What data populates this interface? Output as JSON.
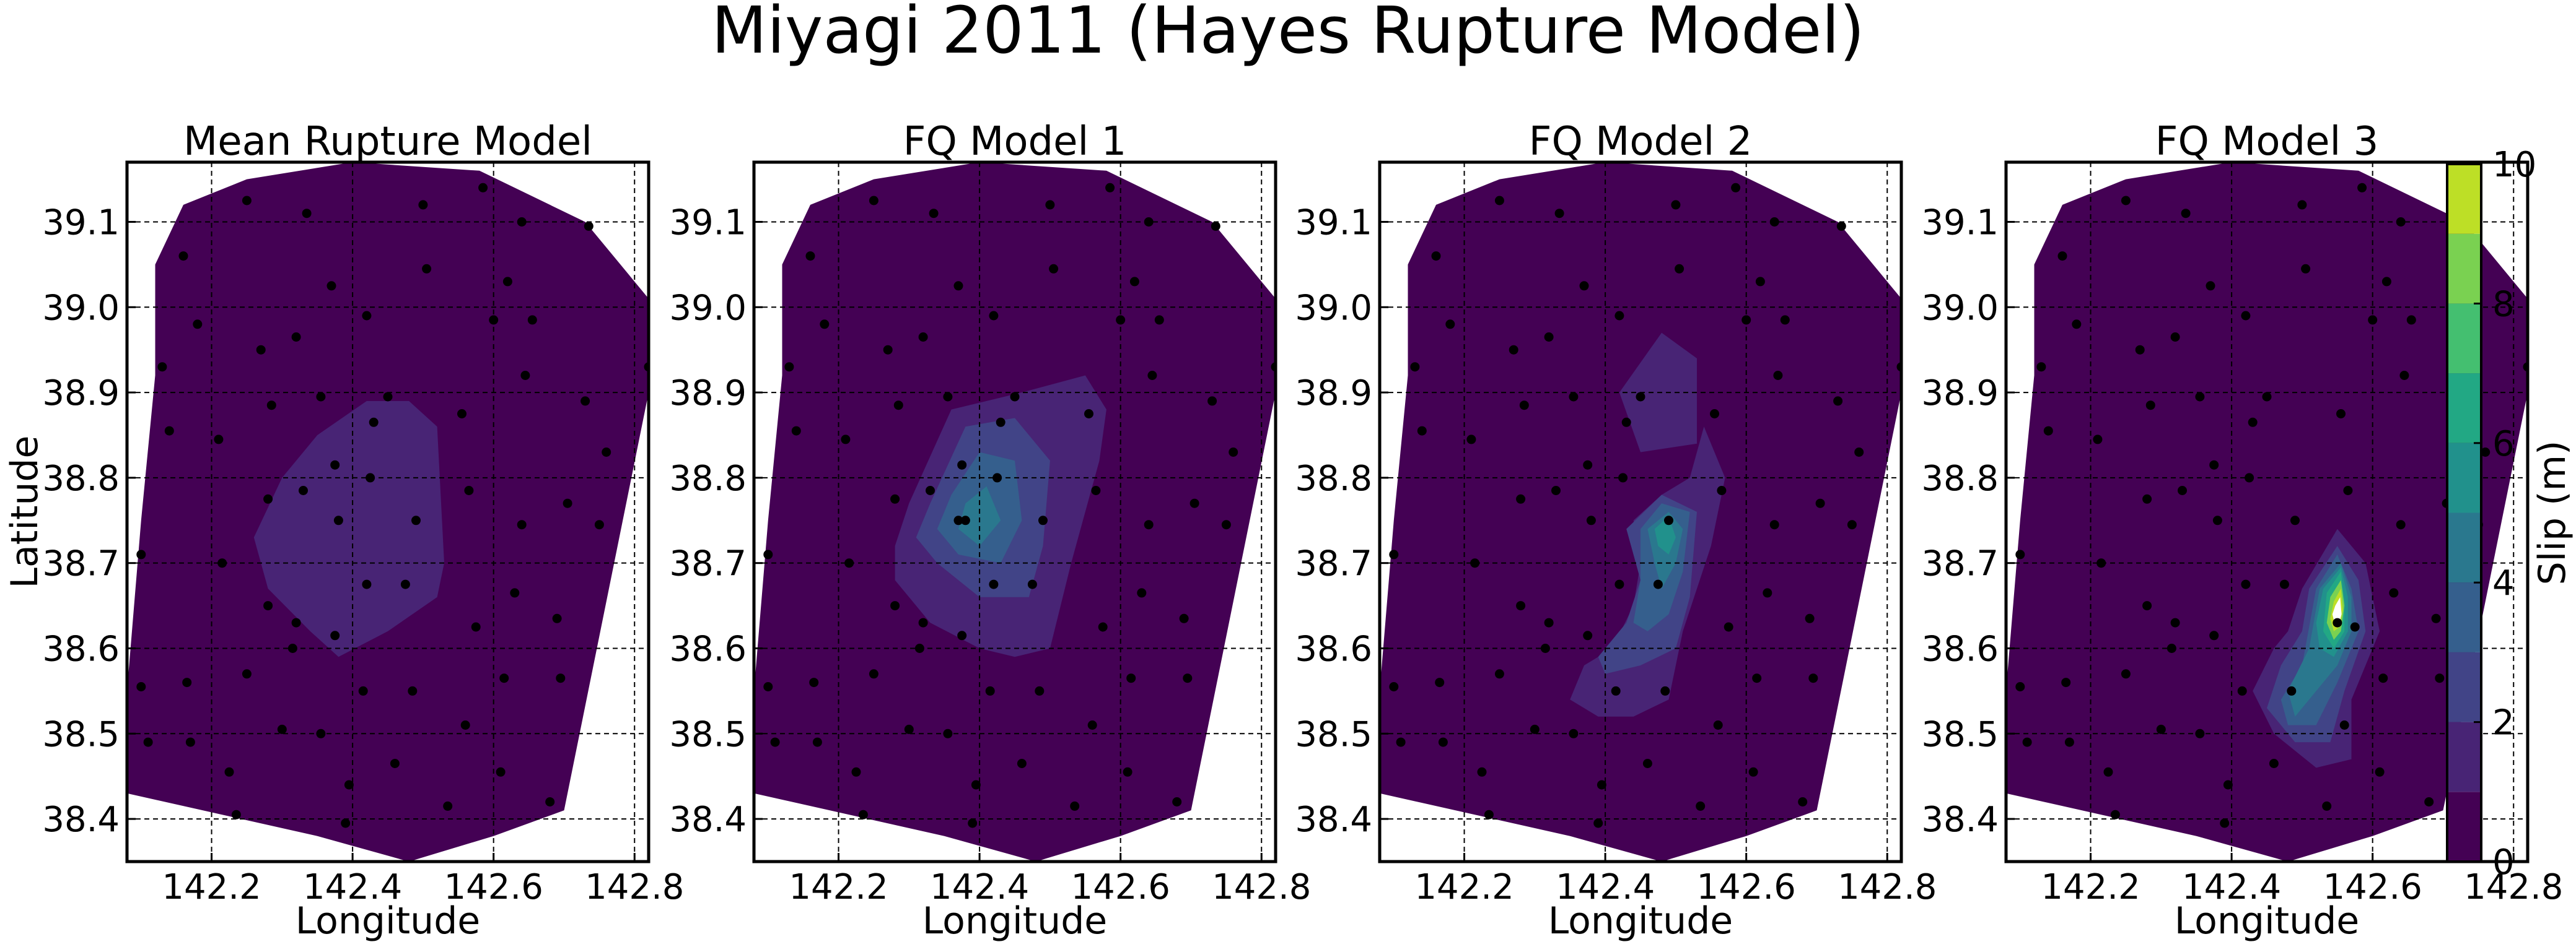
{
  "figure": {
    "title": "Miyagi 2011 (Hayes Rupture Model)"
  },
  "colors": {
    "levels": [
      "#440154",
      "#482475",
      "#414487",
      "#355f8d",
      "#2a788e",
      "#21918c",
      "#22a884",
      "#44bf70",
      "#7ad151",
      "#bddf26",
      "#fde725"
    ],
    "points": "#000000",
    "grid": "#000000"
  },
  "chart_data": [
    {
      "type": "contour",
      "title": "Mean Rupture Model",
      "xlabel": "Longitude",
      "ylabel": "Latitude",
      "xlim": [
        142.08,
        142.82
      ],
      "ylim": [
        38.35,
        39.17
      ],
      "xticks": [
        "142.2",
        "142.4",
        "142.6",
        "142.8"
      ],
      "yticks": [
        "38.4",
        "38.5",
        "38.6",
        "38.7",
        "38.8",
        "38.9",
        "39.0",
        "39.1"
      ],
      "grid": true,
      "patches": [
        {
          "level": 1,
          "polygon": [
            [
              142.3,
              38.8
            ],
            [
              142.35,
              38.85
            ],
            [
              142.42,
              38.89
            ],
            [
              142.48,
              38.89
            ],
            [
              142.52,
              38.86
            ],
            [
              142.53,
              38.7
            ],
            [
              142.52,
              38.66
            ],
            [
              142.45,
              38.62
            ],
            [
              142.38,
              38.59
            ],
            [
              142.34,
              38.62
            ],
            [
              142.28,
              38.67
            ],
            [
              142.26,
              38.73
            ]
          ]
        }
      ]
    },
    {
      "type": "contour",
      "title": "FQ Model 1",
      "xlabel": "Longitude",
      "ylabel": "",
      "xlim": [
        142.08,
        142.82
      ],
      "ylim": [
        38.35,
        39.17
      ],
      "xticks": [
        "142.2",
        "142.4",
        "142.6",
        "142.8"
      ],
      "yticks": [
        "38.4",
        "38.5",
        "38.6",
        "38.7",
        "38.8",
        "38.9",
        "39.0",
        "39.1"
      ],
      "grid": true,
      "patches": [
        {
          "level": 1,
          "polygon": [
            [
              142.3,
              38.77
            ],
            [
              142.36,
              38.88
            ],
            [
              142.46,
              38.9
            ],
            [
              142.55,
              38.92
            ],
            [
              142.58,
              38.88
            ],
            [
              142.57,
              38.82
            ],
            [
              142.53,
              38.7
            ],
            [
              142.5,
              38.6
            ],
            [
              142.45,
              38.59
            ],
            [
              142.4,
              38.6
            ],
            [
              142.33,
              38.63
            ],
            [
              142.28,
              38.68
            ],
            [
              142.28,
              38.72
            ]
          ]
        },
        {
          "level": 2,
          "polygon": [
            [
              142.33,
              38.77
            ],
            [
              142.38,
              38.86
            ],
            [
              142.45,
              38.87
            ],
            [
              142.5,
              38.82
            ],
            [
              142.49,
              38.72
            ],
            [
              142.47,
              38.66
            ],
            [
              142.4,
              38.66
            ],
            [
              142.34,
              38.7
            ],
            [
              142.31,
              38.73
            ]
          ]
        },
        {
          "level": 3,
          "polygon": [
            [
              142.36,
              38.78
            ],
            [
              142.4,
              38.83
            ],
            [
              142.45,
              38.82
            ],
            [
              142.46,
              38.75
            ],
            [
              142.43,
              38.7
            ],
            [
              142.37,
              38.71
            ],
            [
              142.34,
              38.74
            ]
          ]
        },
        {
          "level": 4,
          "polygon": [
            [
              142.38,
              38.77
            ],
            [
              142.41,
              38.79
            ],
            [
              142.43,
              38.75
            ],
            [
              142.4,
              38.72
            ],
            [
              142.37,
              38.74
            ]
          ]
        }
      ],
      "extra_points": [
        [
          142.37,
          38.75
        ]
      ]
    },
    {
      "type": "contour",
      "title": "FQ Model 2",
      "xlabel": "Longitude",
      "ylabel": "",
      "xlim": [
        142.08,
        142.82
      ],
      "ylim": [
        38.35,
        39.17
      ],
      "xticks": [
        "142.2",
        "142.4",
        "142.6",
        "142.8"
      ],
      "yticks": [
        "38.4",
        "38.5",
        "38.6",
        "38.7",
        "38.8",
        "38.9",
        "39.0",
        "39.1"
      ],
      "grid": true,
      "patches": [
        {
          "level": 1,
          "polygon": [
            [
              142.42,
              38.9
            ],
            [
              142.48,
              38.97
            ],
            [
              142.53,
              38.94
            ],
            [
              142.53,
              38.84
            ],
            [
              142.45,
              38.83
            ]
          ]
        },
        {
          "level": 1,
          "polygon": [
            [
              142.44,
              38.75
            ],
            [
              142.48,
              38.78
            ],
            [
              142.52,
              38.8
            ],
            [
              142.54,
              38.86
            ],
            [
              142.57,
              38.8
            ],
            [
              142.55,
              38.72
            ],
            [
              142.51,
              38.62
            ],
            [
              142.49,
              38.54
            ],
            [
              142.44,
              38.52
            ],
            [
              142.39,
              38.52
            ],
            [
              142.35,
              38.54
            ],
            [
              142.37,
              38.58
            ],
            [
              142.41,
              38.6
            ],
            [
              142.44,
              38.65
            ],
            [
              142.45,
              38.7
            ]
          ]
        },
        {
          "level": 2,
          "polygon": [
            [
              142.43,
              38.74
            ],
            [
              142.48,
              38.78
            ],
            [
              142.53,
              38.76
            ],
            [
              142.52,
              38.66
            ],
            [
              142.5,
              38.6
            ],
            [
              142.45,
              38.58
            ],
            [
              142.4,
              38.57
            ],
            [
              142.39,
              38.59
            ],
            [
              142.43,
              38.63
            ],
            [
              142.45,
              38.68
            ]
          ]
        },
        {
          "level": 3,
          "polygon": [
            [
              142.45,
              38.74
            ],
            [
              142.48,
              38.77
            ],
            [
              142.52,
              38.76
            ],
            [
              142.51,
              38.69
            ],
            [
              142.49,
              38.64
            ],
            [
              142.46,
              38.62
            ],
            [
              142.44,
              38.63
            ],
            [
              142.45,
              38.68
            ]
          ]
        },
        {
          "level": 4,
          "polygon": [
            [
              142.46,
              38.74
            ],
            [
              142.49,
              38.76
            ],
            [
              142.51,
              38.74
            ],
            [
              142.5,
              38.7
            ],
            [
              142.48,
              38.67
            ],
            [
              142.47,
              38.7
            ]
          ]
        },
        {
          "level": 5,
          "polygon": [
            [
              142.47,
              38.74
            ],
            [
              142.49,
              38.755
            ],
            [
              142.5,
              38.73
            ],
            [
              142.49,
              38.71
            ],
            [
              142.475,
              38.72
            ]
          ]
        }
      ]
    },
    {
      "type": "contour",
      "title": "FQ Model 3",
      "xlabel": "Longitude",
      "ylabel": "",
      "xlim": [
        142.08,
        142.82
      ],
      "ylim": [
        38.35,
        39.17
      ],
      "xticks": [
        "142.2",
        "142.4",
        "142.6",
        "142.8"
      ],
      "yticks": [
        "38.4",
        "38.5",
        "38.6",
        "38.7",
        "38.8",
        "38.9",
        "39.0",
        "39.1"
      ],
      "grid": true,
      "patches": [
        {
          "level": 1,
          "polygon": [
            [
              142.5,
              38.67
            ],
            [
              142.55,
              38.74
            ],
            [
              142.59,
              38.7
            ],
            [
              142.61,
              38.62
            ],
            [
              142.57,
              38.54
            ],
            [
              142.57,
              38.47
            ],
            [
              142.52,
              38.46
            ],
            [
              142.46,
              38.5
            ],
            [
              142.43,
              38.55
            ],
            [
              142.46,
              38.6
            ],
            [
              142.48,
              38.62
            ]
          ]
        },
        {
          "level": 2,
          "polygon": [
            [
              142.51,
              38.67
            ],
            [
              142.55,
              38.72
            ],
            [
              142.58,
              38.68
            ],
            [
              142.59,
              38.62
            ],
            [
              142.56,
              38.55
            ],
            [
              142.54,
              38.49
            ],
            [
              142.49,
              38.49
            ],
            [
              142.45,
              38.53
            ],
            [
              142.47,
              38.58
            ],
            [
              142.5,
              38.62
            ]
          ]
        },
        {
          "level": 3,
          "polygon": [
            [
              142.52,
              38.67
            ],
            [
              142.55,
              38.71
            ],
            [
              142.57,
              38.67
            ],
            [
              142.58,
              38.62
            ],
            [
              142.55,
              38.56
            ],
            [
              142.52,
              38.51
            ],
            [
              142.48,
              38.51
            ],
            [
              142.47,
              38.54
            ],
            [
              142.5,
              38.58
            ]
          ]
        },
        {
          "level": 4,
          "polygon": [
            [
              142.525,
              38.67
            ],
            [
              142.555,
              38.7
            ],
            [
              142.57,
              38.66
            ],
            [
              142.57,
              38.62
            ],
            [
              142.55,
              38.58
            ],
            [
              142.52,
              38.55
            ],
            [
              142.49,
              38.52
            ],
            [
              142.48,
              38.55
            ],
            [
              142.51,
              38.6
            ]
          ]
        },
        {
          "level": 5,
          "polygon": [
            [
              142.53,
              38.67
            ],
            [
              142.555,
              38.695
            ],
            [
              142.565,
              38.66
            ],
            [
              142.565,
              38.62
            ],
            [
              142.545,
              38.59
            ],
            [
              142.525,
              38.6
            ],
            [
              142.52,
              38.63
            ]
          ]
        },
        {
          "level": 6,
          "polygon": [
            [
              142.535,
              38.665
            ],
            [
              142.555,
              38.69
            ],
            [
              142.56,
              38.655
            ],
            [
              142.56,
              38.62
            ],
            [
              142.545,
              38.6
            ],
            [
              142.53,
              38.62
            ]
          ]
        },
        {
          "level": 8,
          "polygon": [
            [
              142.54,
              38.66
            ],
            [
              142.555,
              38.68
            ],
            [
              142.56,
              38.65
            ],
            [
              142.555,
              38.62
            ],
            [
              142.545,
              38.61
            ],
            [
              142.535,
              38.63
            ]
          ]
        },
        {
          "level": 9,
          "polygon": [
            [
              142.545,
              38.655
            ],
            [
              142.555,
              38.67
            ],
            [
              142.558,
              38.645
            ],
            [
              142.553,
              38.625
            ],
            [
              142.545,
              38.62
            ],
            [
              142.54,
              38.635
            ]
          ]
        },
        {
          "level": 10,
          "color": "#ffffff",
          "polygon": [
            [
              142.547,
              38.65
            ],
            [
              142.554,
              38.66
            ],
            [
              142.556,
              38.64
            ],
            [
              142.552,
              38.628
            ],
            [
              142.546,
              38.63
            ],
            [
              142.543,
              38.64
            ]
          ]
        }
      ],
      "extra_points": [
        [
          142.55,
          38.63
        ]
      ]
    }
  ],
  "stations": [
    [
      142.1,
      38.71
    ],
    [
      142.1,
      38.555
    ],
    [
      142.11,
      38.49
    ],
    [
      142.13,
      38.93
    ],
    [
      142.14,
      38.855
    ],
    [
      142.16,
      39.06
    ],
    [
      142.165,
      38.56
    ],
    [
      142.17,
      38.49
    ],
    [
      142.18,
      38.98
    ],
    [
      142.21,
      38.845
    ],
    [
      142.215,
      38.7
    ],
    [
      142.225,
      38.455
    ],
    [
      142.235,
      38.405
    ],
    [
      142.25,
      38.57
    ],
    [
      142.25,
      39.125
    ],
    [
      142.27,
      38.95
    ],
    [
      142.28,
      38.65
    ],
    [
      142.28,
      38.775
    ],
    [
      142.285,
      38.885
    ],
    [
      142.3,
      38.505
    ],
    [
      142.315,
      38.6
    ],
    [
      142.32,
      38.63
    ],
    [
      142.32,
      38.965
    ],
    [
      142.33,
      38.785
    ],
    [
      142.335,
      39.11
    ],
    [
      142.355,
      38.5
    ],
    [
      142.355,
      38.895
    ],
    [
      142.37,
      39.025
    ],
    [
      142.375,
      38.815
    ],
    [
      142.375,
      38.615
    ],
    [
      142.38,
      38.75
    ],
    [
      142.39,
      38.395
    ],
    [
      142.395,
      38.44
    ],
    [
      142.415,
      38.55
    ],
    [
      142.42,
      38.675
    ],
    [
      142.42,
      38.99
    ],
    [
      142.425,
      38.8
    ],
    [
      142.43,
      38.865
    ],
    [
      142.45,
      38.895
    ],
    [
      142.46,
      38.465
    ],
    [
      142.475,
      38.675
    ],
    [
      142.49,
      38.75
    ],
    [
      142.485,
      38.55
    ],
    [
      142.5,
      39.12
    ],
    [
      142.505,
      39.045
    ],
    [
      142.535,
      38.415
    ],
    [
      142.555,
      38.875
    ],
    [
      142.56,
      38.51
    ],
    [
      142.565,
      38.785
    ],
    [
      142.575,
      38.625
    ],
    [
      142.585,
      39.14
    ],
    [
      142.6,
      38.985
    ],
    [
      142.61,
      38.455
    ],
    [
      142.615,
      38.565
    ],
    [
      142.62,
      39.03
    ],
    [
      142.63,
      38.665
    ],
    [
      142.64,
      38.745
    ],
    [
      142.64,
      39.1
    ],
    [
      142.645,
      38.92
    ],
    [
      142.655,
      38.985
    ],
    [
      142.68,
      38.42
    ],
    [
      142.69,
      38.635
    ],
    [
      142.695,
      38.565
    ],
    [
      142.705,
      38.77
    ],
    [
      142.73,
      38.89
    ],
    [
      142.735,
      39.095
    ],
    [
      142.75,
      38.745
    ],
    [
      142.76,
      38.83
    ],
    [
      142.82,
      38.93
    ]
  ],
  "hull": [
    [
      142.12,
      39.05
    ],
    [
      142.16,
      39.12
    ],
    [
      142.25,
      39.15
    ],
    [
      142.4,
      39.17
    ],
    [
      142.58,
      39.16
    ],
    [
      142.73,
      39.1
    ],
    [
      142.82,
      39.01
    ],
    [
      142.82,
      38.9
    ],
    [
      142.7,
      38.41
    ],
    [
      142.6,
      38.38
    ],
    [
      142.48,
      38.35
    ],
    [
      142.35,
      38.38
    ],
    [
      142.08,
      38.43
    ],
    [
      142.08,
      38.55
    ],
    [
      142.1,
      38.75
    ],
    [
      142.12,
      38.92
    ]
  ],
  "colorbar": {
    "label": "Slip (m)",
    "min": 0,
    "max": 10,
    "bounds": [
      0,
      1,
      2,
      3,
      4,
      5,
      6,
      7,
      8,
      9,
      10
    ],
    "ticks": [
      "0",
      "2",
      "4",
      "6",
      "8",
      "10"
    ]
  }
}
